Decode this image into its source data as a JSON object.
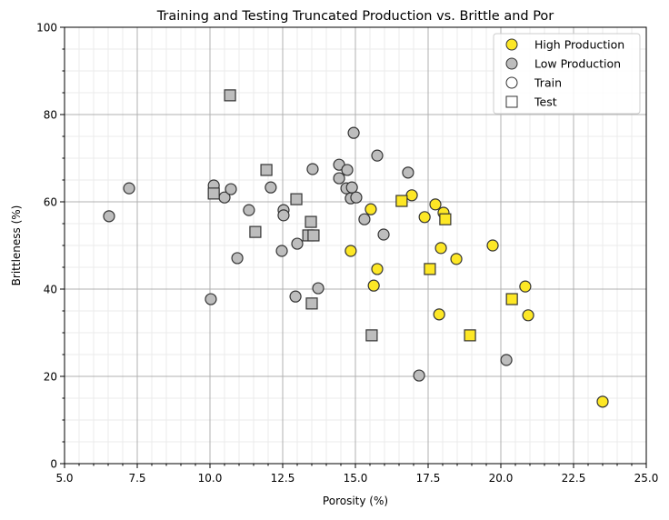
{
  "chart_data": {
    "type": "scatter",
    "title": "Training and Testing Truncated Production vs. Brittle and Por",
    "xlabel": "Porosity (%)",
    "ylabel": "Brittleness (%)",
    "xlim": [
      5.0,
      25.0
    ],
    "ylim": [
      0,
      100
    ],
    "xticks": [
      "5.0",
      "7.5",
      "10.0",
      "12.5",
      "15.0",
      "17.5",
      "20.0",
      "22.5",
      "25.0"
    ],
    "yticks": [
      "0",
      "20",
      "40",
      "60",
      "80",
      "100"
    ],
    "grid": true,
    "legend_position": "top-right",
    "legend": [
      "High Production",
      "Low Production",
      "Train",
      "Test"
    ],
    "colors": {
      "high": "#fde725",
      "low": "#bdbdbd",
      "edge": "#333333"
    },
    "series": [
      {
        "name": "Low Production Train",
        "class": "low",
        "marker": "circle",
        "points": [
          [
            6.53,
            56.7
          ],
          [
            7.22,
            63.1
          ],
          [
            10.03,
            37.7
          ],
          [
            10.13,
            63.75
          ],
          [
            10.5,
            61.0
          ],
          [
            10.72,
            62.9
          ],
          [
            10.94,
            47.1
          ],
          [
            11.34,
            58.1
          ],
          [
            12.09,
            63.3
          ],
          [
            12.53,
            58.1
          ],
          [
            12.53,
            56.9
          ],
          [
            12.47,
            48.75
          ],
          [
            12.94,
            38.3
          ],
          [
            13.0,
            50.4
          ],
          [
            13.53,
            67.5
          ],
          [
            13.72,
            40.2
          ],
          [
            14.44,
            68.5
          ],
          [
            14.44,
            65.4
          ],
          [
            14.69,
            63.1
          ],
          [
            14.72,
            67.3
          ],
          [
            14.84,
            60.8
          ],
          [
            14.88,
            63.3
          ],
          [
            14.94,
            75.8
          ],
          [
            15.03,
            61.0
          ],
          [
            15.31,
            56.0
          ],
          [
            15.75,
            70.6
          ],
          [
            15.97,
            52.5
          ],
          [
            16.81,
            66.7
          ],
          [
            17.19,
            20.2
          ],
          [
            20.19,
            23.75
          ]
        ]
      },
      {
        "name": "Low Production Test",
        "class": "low",
        "marker": "square",
        "points": [
          [
            10.69,
            84.4
          ],
          [
            10.13,
            61.9
          ],
          [
            11.94,
            67.3
          ],
          [
            11.56,
            53.1
          ],
          [
            12.97,
            60.6
          ],
          [
            13.47,
            55.4
          ],
          [
            13.38,
            52.3
          ],
          [
            13.56,
            52.3
          ],
          [
            13.5,
            36.7
          ],
          [
            15.56,
            29.4
          ]
        ]
      },
      {
        "name": "High Production Train",
        "class": "high",
        "marker": "circle",
        "points": [
          [
            15.53,
            58.3
          ],
          [
            14.84,
            48.75
          ],
          [
            15.75,
            44.6
          ],
          [
            15.63,
            40.8
          ],
          [
            16.94,
            61.5
          ],
          [
            17.38,
            56.5
          ],
          [
            17.75,
            59.4
          ],
          [
            18.03,
            57.5
          ],
          [
            17.94,
            49.4
          ],
          [
            18.47,
            46.9
          ],
          [
            17.88,
            34.2
          ],
          [
            19.72,
            50.0
          ],
          [
            20.84,
            40.6
          ],
          [
            20.94,
            34.0
          ],
          [
            23.5,
            14.2
          ]
        ]
      },
      {
        "name": "High Production Test",
        "class": "high",
        "marker": "square",
        "points": [
          [
            16.59,
            60.2
          ],
          [
            18.09,
            56.0
          ],
          [
            17.56,
            44.6
          ],
          [
            18.94,
            29.4
          ],
          [
            20.38,
            37.7
          ]
        ]
      }
    ]
  }
}
